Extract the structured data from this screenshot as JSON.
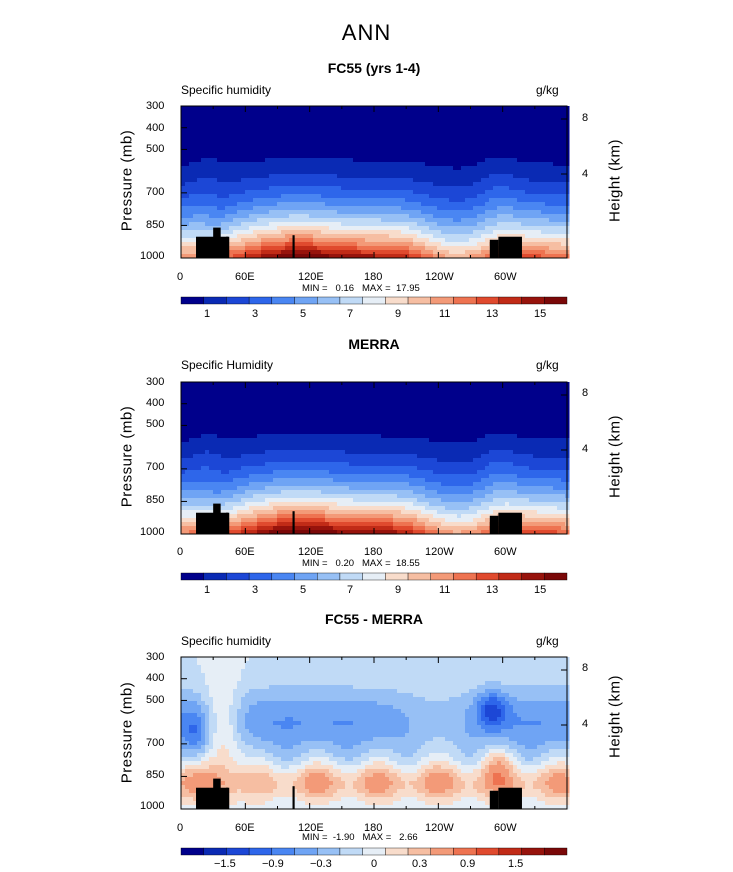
{
  "suptitle": "ANN",
  "colors": {
    "full": [
      "#00008b",
      "#0a2ab4",
      "#1c47d6",
      "#2e66ea",
      "#4a86f2",
      "#6fa4f4",
      "#97c0f5",
      "#c0daf6",
      "#e6eef6",
      "#f8dccb",
      "#f6bea2",
      "#f39a78",
      "#ee7351",
      "#e04a2e",
      "#c12b17",
      "#97130c",
      "#7a0808"
    ],
    "diff": [
      "#00008b",
      "#0a2ab4",
      "#1c47d6",
      "#2e66ea",
      "#4a86f2",
      "#6fa4f4",
      "#97c0f5",
      "#c0daf6",
      "#e6eef6",
      "#f8dccb",
      "#f6bea2",
      "#f39a78",
      "#ee7351",
      "#e04a2e",
      "#c12b17",
      "#97130c",
      "#7a0808"
    ]
  },
  "chart_data": [
    {
      "type": "heatmap",
      "title": "FC55 (yrs 1-4)",
      "left_label": "Specific humidity",
      "right_label": "g/kg",
      "ylabel": "Pressure (mb)",
      "y2label": "Height (km)",
      "yticks": [
        "300",
        "400",
        "500",
        "700",
        "850",
        "1000"
      ],
      "y2ticks": [
        "8",
        "4"
      ],
      "xticks": [
        "0",
        "60E",
        "120E",
        "180",
        "120W",
        "60W"
      ],
      "min": 0.16,
      "max": 17.95,
      "stats_min_label": "MIN =",
      "stats_min": "0.16",
      "stats_max_label": "MAX =",
      "stats_max": "17.95",
      "colorbar_labels": [
        "1",
        "3",
        "5",
        "7",
        "9",
        "11",
        "13",
        "15"
      ],
      "levels_step": 1
    },
    {
      "type": "heatmap",
      "title": "MERRA",
      "left_label": "Specific Humidity",
      "right_label": "g/kg",
      "ylabel": "Pressure (mb)",
      "y2label": "Height (km)",
      "yticks": [
        "300",
        "400",
        "500",
        "700",
        "850",
        "1000"
      ],
      "y2ticks": [
        "8",
        "4"
      ],
      "xticks": [
        "0",
        "60E",
        "120E",
        "180",
        "120W",
        "60W"
      ],
      "min": 0.2,
      "max": 18.55,
      "stats_min_label": "MIN =",
      "stats_min": "0.20",
      "stats_max_label": "MAX =",
      "stats_max": "18.55",
      "colorbar_labels": [
        "1",
        "3",
        "5",
        "7",
        "9",
        "11",
        "13",
        "15"
      ],
      "levels_step": 1
    },
    {
      "type": "heatmap",
      "title": "FC55 - MERRA",
      "left_label": "Specific humidity",
      "right_label": "g/kg",
      "ylabel": "Pressure (mb)",
      "y2label": "Height (km)",
      "yticks": [
        "300",
        "400",
        "500",
        "700",
        "850",
        "1000"
      ],
      "y2ticks": [
        "8",
        "4"
      ],
      "xticks": [
        "0",
        "60E",
        "120E",
        "180",
        "120W",
        "60W"
      ],
      "min": -1.9,
      "max": 2.66,
      "stats_min_label": "MIN =",
      "stats_min": "-1.90",
      "stats_max_label": "MAX =",
      "stats_max": "2.66",
      "colorbar_labels": [
        "−1.5",
        "−0.9",
        "−0.3",
        "0",
        "0.3",
        "0.9",
        "1.5"
      ],
      "levels_step": 0.3
    }
  ]
}
